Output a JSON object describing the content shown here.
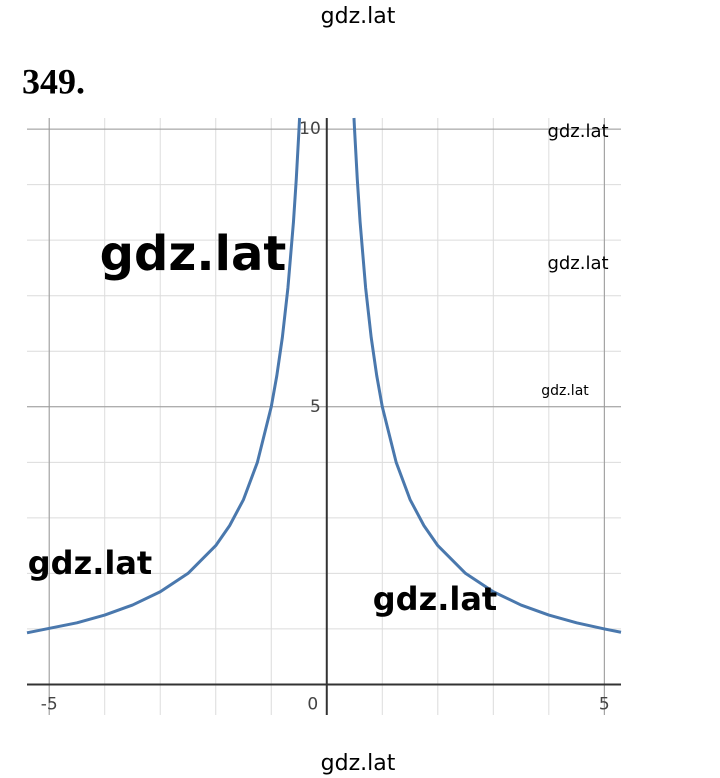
{
  "header": "gdz.lat",
  "footer": "gdz.lat",
  "chart_data": {
    "type": "line",
    "title": "349.",
    "x": [
      -5.4,
      -4.5,
      -4,
      -3.5,
      -3,
      -2.5,
      -2,
      -1.75,
      -1.5,
      -1.25,
      -1,
      -0.9,
      -0.8,
      -0.7,
      -0.6,
      -0.55,
      -0.5,
      -0.49,
      0,
      0.49,
      0.5,
      0.55,
      0.6,
      0.7,
      0.8,
      0.9,
      1,
      1.25,
      1.5,
      1.75,
      2,
      2.5,
      3,
      3.5,
      4,
      4.5,
      5,
      5.3
    ],
    "series": [
      {
        "color": "#4a78ad",
        "values": [
          0.93,
          1.11,
          1.25,
          1.43,
          1.67,
          2,
          2.5,
          2.86,
          3.33,
          4,
          5,
          5.56,
          6.25,
          7.14,
          8.33,
          9.09,
          10,
          10.2,
          null,
          10.2,
          10,
          9.09,
          8.33,
          7.14,
          6.25,
          5.56,
          5,
          4,
          3.33,
          2.86,
          2.5,
          2,
          1.67,
          1.43,
          1.25,
          1.11,
          1,
          0.94
        ]
      }
    ],
    "xlim": [
      -5.4,
      5.3
    ],
    "ylim": [
      -0.55,
      10.2
    ],
    "xticks": [
      -5,
      0,
      5
    ],
    "yticks": [
      5,
      10
    ],
    "minor_xticks": [
      -5,
      -4,
      -3,
      -2,
      -1,
      1,
      2,
      3,
      4,
      5
    ],
    "minor_yticks": [
      1,
      2,
      3,
      4,
      5,
      6,
      7,
      8,
      9,
      10
    ],
    "grid": true,
    "watermarks": [
      "gdz.lat",
      "gdz.lat",
      "gdz.lat",
      "gdz.lat",
      "gdz.lat",
      "gdz.lat"
    ]
  }
}
